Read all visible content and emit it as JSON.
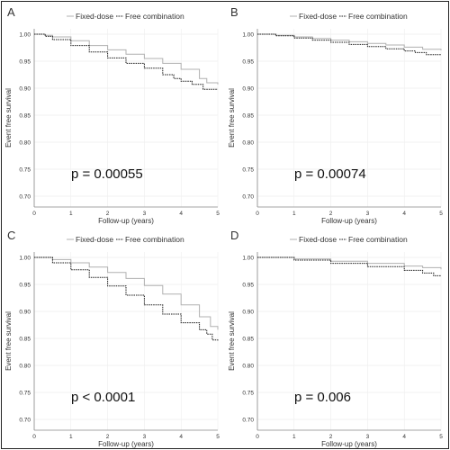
{
  "chart_data": [
    {
      "type": "line",
      "panel_label": "A",
      "legend": [
        "Fixed-dose",
        "Free combination"
      ],
      "xlabel": "Follow-up (years)",
      "ylabel": "Event free survival",
      "xlim": [
        0,
        5
      ],
      "ylim": [
        0.68,
        1.01
      ],
      "xticks": [
        "0",
        "1",
        "2",
        "3",
        "4",
        "5"
      ],
      "yticks": [
        "0.70",
        "0.75",
        "0.80",
        "0.85",
        "0.90",
        "0.95",
        "1.00"
      ],
      "annotation": "p = 0.00055",
      "series": [
        {
          "name": "Fixed-dose",
          "x": [
            0,
            0.3,
            0.5,
            1.0,
            1.5,
            2.0,
            2.5,
            3.0,
            3.5,
            4.0,
            4.5,
            4.7,
            5.0
          ],
          "y": [
            1.0,
            0.998,
            0.995,
            0.988,
            0.979,
            0.971,
            0.963,
            0.955,
            0.946,
            0.935,
            0.918,
            0.91,
            0.907
          ]
        },
        {
          "name": "Free combination",
          "x": [
            0,
            0.3,
            0.5,
            1.0,
            1.5,
            2.0,
            2.5,
            3.0,
            3.5,
            3.8,
            4.0,
            4.3,
            4.6,
            5.0
          ],
          "y": [
            1.0,
            0.996,
            0.99,
            0.979,
            0.967,
            0.956,
            0.946,
            0.937,
            0.925,
            0.918,
            0.913,
            0.907,
            0.898,
            0.898
          ]
        }
      ]
    },
    {
      "type": "line",
      "panel_label": "B",
      "legend": [
        "Fixed-dose",
        "Free combination"
      ],
      "xlabel": "Follow-up (years)",
      "ylabel": "Event free survival",
      "xlim": [
        0,
        5
      ],
      "ylim": [
        0.68,
        1.01
      ],
      "xticks": [
        "0",
        "1",
        "2",
        "3",
        "4",
        "5"
      ],
      "yticks": [
        "0.70",
        "0.75",
        "0.80",
        "0.85",
        "0.90",
        "0.95",
        "1.00"
      ],
      "annotation": "p = 0.00074",
      "series": [
        {
          "name": "Fixed-dose",
          "x": [
            0,
            0.5,
            1.0,
            1.5,
            2.0,
            2.5,
            3.0,
            3.5,
            4.0,
            4.5,
            5.0
          ],
          "y": [
            1.0,
            0.998,
            0.995,
            0.992,
            0.989,
            0.986,
            0.983,
            0.98,
            0.976,
            0.972,
            0.97
          ]
        },
        {
          "name": "Free combination",
          "x": [
            0,
            0.5,
            1.0,
            1.5,
            2.0,
            2.5,
            3.0,
            3.5,
            4.0,
            4.3,
            4.6,
            5.0
          ],
          "y": [
            1.0,
            0.997,
            0.993,
            0.989,
            0.985,
            0.981,
            0.977,
            0.973,
            0.969,
            0.966,
            0.962,
            0.961
          ]
        }
      ]
    },
    {
      "type": "line",
      "panel_label": "C",
      "legend": [
        "Fixed-dose",
        "Free combination"
      ],
      "xlabel": "Follow-up (years)",
      "ylabel": "Event free survival",
      "xlim": [
        0,
        5
      ],
      "ylim": [
        0.68,
        1.01
      ],
      "xticks": [
        "0",
        "1",
        "2",
        "3",
        "4",
        "5"
      ],
      "yticks": [
        "0.70",
        "0.75",
        "0.80",
        "0.85",
        "0.90",
        "0.95",
        "1.00"
      ],
      "annotation": "p < 0.0001",
      "series": [
        {
          "name": "Fixed-dose",
          "x": [
            0,
            0.5,
            1.0,
            1.5,
            2.0,
            2.5,
            3.0,
            3.5,
            4.0,
            4.5,
            4.8,
            5.0
          ],
          "y": [
            1.0,
            0.996,
            0.99,
            0.982,
            0.972,
            0.961,
            0.948,
            0.932,
            0.912,
            0.89,
            0.872,
            0.866
          ]
        },
        {
          "name": "Free combination",
          "x": [
            0,
            0.5,
            1.0,
            1.5,
            2.0,
            2.5,
            3.0,
            3.5,
            4.0,
            4.5,
            4.7,
            4.85,
            5.0
          ],
          "y": [
            1.0,
            0.99,
            0.977,
            0.963,
            0.947,
            0.93,
            0.912,
            0.895,
            0.879,
            0.866,
            0.858,
            0.847,
            0.846
          ]
        }
      ]
    },
    {
      "type": "line",
      "panel_label": "D",
      "legend": [
        "Fixed-dose",
        "Free combination"
      ],
      "xlabel": "Follow-up (years)",
      "ylabel": "Event free survival",
      "xlim": [
        0,
        5
      ],
      "ylim": [
        0.68,
        1.01
      ],
      "xticks": [
        "0",
        "1",
        "2",
        "3",
        "4",
        "5"
      ],
      "yticks": [
        "0.70",
        "0.75",
        "0.80",
        "0.85",
        "0.90",
        "0.95",
        "1.00"
      ],
      "annotation": "p = 0.006",
      "series": [
        {
          "name": "Fixed-dose",
          "x": [
            0,
            1.0,
            2.0,
            3.0,
            4.0,
            4.5,
            5.0
          ],
          "y": [
            1.0,
            0.997,
            0.993,
            0.989,
            0.984,
            0.981,
            0.978
          ]
        },
        {
          "name": "Free combination",
          "x": [
            0,
            1.0,
            2.0,
            3.0,
            4.0,
            4.5,
            4.8,
            5.0
          ],
          "y": [
            1.0,
            0.995,
            0.989,
            0.983,
            0.976,
            0.971,
            0.966,
            0.965
          ]
        }
      ]
    }
  ],
  "style": {
    "fixed_color": "#b0b0b0",
    "free_color": "#1a1a1a",
    "axis_color": "#888888",
    "text_color": "#333333"
  }
}
